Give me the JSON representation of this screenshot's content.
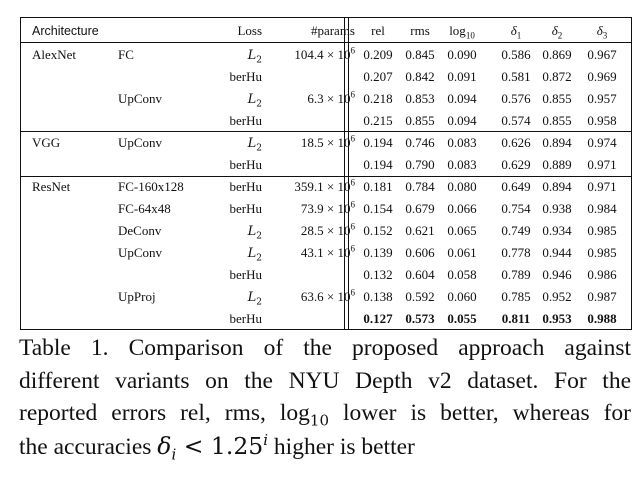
{
  "table": {
    "headers": {
      "architecture": "Architecture",
      "loss": "Loss",
      "params": "#params",
      "rel": "rel",
      "rms": "rms",
      "log10_base": "log",
      "log10_sub": "10",
      "d1_sym": "δ",
      "d1_sub": "1",
      "d2_sym": "δ",
      "d2_sub": "2",
      "d3_sym": "δ",
      "d3_sub": "3"
    },
    "loss_l2_symbol": "L",
    "loss_l2_sub": "2",
    "param_suffix": "× 10",
    "param_exp": "6",
    "rows": [
      {
        "arch": "AlexNet",
        "variant": "FC",
        "loss": "L2",
        "params": "104.4",
        "rel": "0.209",
        "rms": "0.845",
        "log10": "0.090",
        "d1": "0.586",
        "d2": "0.869",
        "d3": "0.967"
      },
      {
        "arch": "",
        "variant": "",
        "loss": "berHu",
        "params": "",
        "rel": "0.207",
        "rms": "0.842",
        "log10": "0.091",
        "d1": "0.581",
        "d2": "0.872",
        "d3": "0.969"
      },
      {
        "arch": "",
        "variant": "UpConv",
        "loss": "L2",
        "params": "6.3",
        "rel": "0.218",
        "rms": "0.853",
        "log10": "0.094",
        "d1": "0.576",
        "d2": "0.855",
        "d3": "0.957"
      },
      {
        "arch": "",
        "variant": "",
        "loss": "berHu",
        "params": "",
        "rel": "0.215",
        "rms": "0.855",
        "log10": "0.094",
        "d1": "0.574",
        "d2": "0.855",
        "d3": "0.958"
      },
      {
        "arch": "VGG",
        "variant": "UpConv",
        "loss": "L2",
        "params": "18.5",
        "rel": "0.194",
        "rms": "0.746",
        "log10": "0.083",
        "d1": "0.626",
        "d2": "0.894",
        "d3": "0.974"
      },
      {
        "arch": "",
        "variant": "",
        "loss": "berHu",
        "params": "",
        "rel": "0.194",
        "rms": "0.790",
        "log10": "0.083",
        "d1": "0.629",
        "d2": "0.889",
        "d3": "0.971"
      },
      {
        "arch": "ResNet",
        "variant": "FC-160x128",
        "loss": "berHu",
        "params": "359.1",
        "rel": "0.181",
        "rms": "0.784",
        "log10": "0.080",
        "d1": "0.649",
        "d2": "0.894",
        "d3": "0.971"
      },
      {
        "arch": "",
        "variant": "FC-64x48",
        "loss": "berHu",
        "params": "73.9",
        "rel": "0.154",
        "rms": "0.679",
        "log10": "0.066",
        "d1": "0.754",
        "d2": "0.938",
        "d3": "0.984"
      },
      {
        "arch": "",
        "variant": "DeConv",
        "loss": "L2",
        "params": "28.5",
        "rel": "0.152",
        "rms": "0.621",
        "log10": "0.065",
        "d1": "0.749",
        "d2": "0.934",
        "d3": "0.985"
      },
      {
        "arch": "",
        "variant": "UpConv",
        "loss": "L2",
        "params": "43.1",
        "rel": "0.139",
        "rms": "0.606",
        "log10": "0.061",
        "d1": "0.778",
        "d2": "0.944",
        "d3": "0.985"
      },
      {
        "arch": "",
        "variant": "",
        "loss": "berHu",
        "params": "",
        "rel": "0.132",
        "rms": "0.604",
        "log10": "0.058",
        "d1": "0.789",
        "d2": "0.946",
        "d3": "0.986"
      },
      {
        "arch": "",
        "variant": "UpProj",
        "loss": "L2",
        "params": "63.6",
        "rel": "0.138",
        "rms": "0.592",
        "log10": "0.060",
        "d1": "0.785",
        "d2": "0.952",
        "d3": "0.987"
      },
      {
        "arch": "",
        "variant": "",
        "loss": "berHu",
        "params": "",
        "rel": "0.127",
        "rms": "0.573",
        "log10": "0.055",
        "d1": "0.811",
        "d2": "0.953",
        "d3": "0.988",
        "bold": true
      }
    ]
  },
  "caption": {
    "line1": "Table 1. Comparison of the proposed approach against",
    "line2": "different variants on the NYU Depth v2 dataset. For the",
    "line3_a": "reported errors rel, rms, log",
    "line3_sub": "10",
    "line3_b": " lower is better, whereas for",
    "line4_a": "the accuracies ",
    "line4_delta": "δ",
    "line4_i": "i",
    "line4_lt": " < 1.25",
    "line4_sup": "i",
    "line4_b": " higher is better"
  }
}
